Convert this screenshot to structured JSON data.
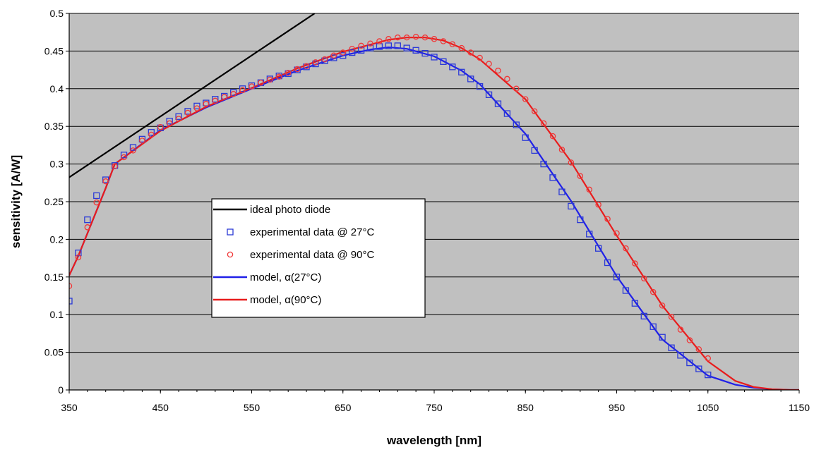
{
  "chart_data": {
    "type": "line",
    "xlabel": "wavelength [nm]",
    "ylabel": "sensitivity [A/W]",
    "xlim": [
      350,
      1150
    ],
    "ylim": [
      0,
      0.5
    ],
    "x_ticks": [
      "350",
      "450",
      "550",
      "650",
      "750",
      "850",
      "950",
      "1050",
      "1150"
    ],
    "y_ticks": [
      "0",
      "0.05",
      "0.1",
      "0.15",
      "0.2",
      "0.25",
      "0.3",
      "0.35",
      "0.4",
      "0.45",
      "0.5"
    ],
    "grid": "horizontal",
    "legend_position": "center-left",
    "plot_background": "#c0c0c0",
    "series": [
      {
        "name": "ideal photo diode",
        "style": "line",
        "color": "#000000",
        "x": [
          350,
          619
        ],
        "y": [
          0.2823,
          0.5
        ]
      },
      {
        "name": "experimental data @ 27°C",
        "style": "square-marker",
        "color": "#2b3ad6",
        "x": [
          350,
          360,
          370,
          380,
          390,
          400,
          410,
          420,
          430,
          440,
          450,
          460,
          470,
          480,
          490,
          500,
          510,
          520,
          530,
          540,
          550,
          560,
          570,
          580,
          590,
          600,
          610,
          620,
          630,
          640,
          650,
          660,
          670,
          680,
          690,
          700,
          710,
          720,
          730,
          740,
          750,
          760,
          770,
          780,
          790,
          800,
          810,
          820,
          830,
          840,
          850,
          860,
          870,
          880,
          890,
          900,
          910,
          920,
          930,
          940,
          950,
          960,
          970,
          980,
          990,
          1000,
          1010,
          1020,
          1030,
          1040,
          1050
        ],
        "y": [
          0.118,
          0.182,
          0.226,
          0.258,
          0.279,
          0.298,
          0.312,
          0.322,
          0.333,
          0.342,
          0.348,
          0.357,
          0.363,
          0.37,
          0.377,
          0.381,
          0.386,
          0.39,
          0.395,
          0.4,
          0.404,
          0.408,
          0.413,
          0.417,
          0.42,
          0.425,
          0.429,
          0.433,
          0.437,
          0.441,
          0.444,
          0.448,
          0.451,
          0.454,
          0.456,
          0.457,
          0.457,
          0.454,
          0.451,
          0.447,
          0.442,
          0.436,
          0.429,
          0.422,
          0.413,
          0.403,
          0.392,
          0.38,
          0.367,
          0.352,
          0.335,
          0.318,
          0.3,
          0.282,
          0.263,
          0.244,
          0.226,
          0.207,
          0.188,
          0.169,
          0.15,
          0.132,
          0.115,
          0.098,
          0.084,
          0.07,
          0.056,
          0.046,
          0.036,
          0.028,
          0.02
        ]
      },
      {
        "name": "experimental data @ 90°C",
        "style": "circle-marker",
        "color": "#f03838",
        "x": [
          350,
          360,
          370,
          380,
          390,
          400,
          410,
          420,
          430,
          440,
          450,
          460,
          470,
          480,
          490,
          500,
          510,
          520,
          530,
          540,
          550,
          560,
          570,
          580,
          590,
          600,
          610,
          620,
          630,
          640,
          650,
          660,
          670,
          680,
          690,
          700,
          710,
          720,
          730,
          740,
          750,
          760,
          770,
          780,
          790,
          800,
          810,
          820,
          830,
          840,
          850,
          860,
          870,
          880,
          890,
          900,
          910,
          920,
          930,
          940,
          950,
          960,
          970,
          980,
          990,
          1000,
          1010,
          1020,
          1030,
          1040,
          1050
        ],
        "y": [
          0.138,
          0.176,
          0.216,
          0.249,
          0.277,
          0.297,
          0.309,
          0.318,
          0.331,
          0.339,
          0.349,
          0.354,
          0.36,
          0.368,
          0.374,
          0.38,
          0.384,
          0.389,
          0.393,
          0.398,
          0.403,
          0.408,
          0.412,
          0.416,
          0.421,
          0.426,
          0.43,
          0.435,
          0.439,
          0.444,
          0.448,
          0.453,
          0.457,
          0.46,
          0.463,
          0.466,
          0.468,
          0.468,
          0.469,
          0.468,
          0.466,
          0.463,
          0.459,
          0.454,
          0.448,
          0.441,
          0.433,
          0.424,
          0.413,
          0.4,
          0.386,
          0.37,
          0.354,
          0.337,
          0.319,
          0.302,
          0.284,
          0.266,
          0.246,
          0.227,
          0.208,
          0.188,
          0.168,
          0.148,
          0.13,
          0.112,
          0.097,
          0.08,
          0.066,
          0.054,
          0.042
        ]
      },
      {
        "name": "model, α(27°C)",
        "style": "line",
        "color": "#2020e8",
        "x": [
          350,
          360,
          370,
          380,
          390,
          400,
          450,
          500,
          550,
          600,
          650,
          680,
          700,
          720,
          750,
          780,
          800,
          850,
          900,
          950,
          1000,
          1050,
          1080,
          1100,
          1120,
          1140,
          1150
        ],
        "y": [
          0.152,
          0.178,
          0.208,
          0.238,
          0.268,
          0.3,
          0.345,
          0.375,
          0.4,
          0.424,
          0.444,
          0.452,
          0.455,
          0.453,
          0.443,
          0.424,
          0.406,
          0.34,
          0.251,
          0.151,
          0.067,
          0.019,
          0.007,
          0.003,
          0.001,
          0.0,
          0.0
        ]
      },
      {
        "name": "model, α(90°C)",
        "style": "line",
        "color": "#e81c1c",
        "x": [
          350,
          360,
          370,
          380,
          390,
          400,
          450,
          500,
          550,
          600,
          650,
          700,
          720,
          740,
          760,
          780,
          800,
          850,
          900,
          950,
          1000,
          1050,
          1080,
          1100,
          1120,
          1140,
          1150
        ],
        "y": [
          0.152,
          0.178,
          0.208,
          0.238,
          0.268,
          0.3,
          0.344,
          0.376,
          0.401,
          0.427,
          0.449,
          0.465,
          0.468,
          0.468,
          0.464,
          0.454,
          0.439,
          0.386,
          0.303,
          0.205,
          0.112,
          0.038,
          0.012,
          0.004,
          0.001,
          0.0,
          0.0
        ]
      }
    ]
  }
}
